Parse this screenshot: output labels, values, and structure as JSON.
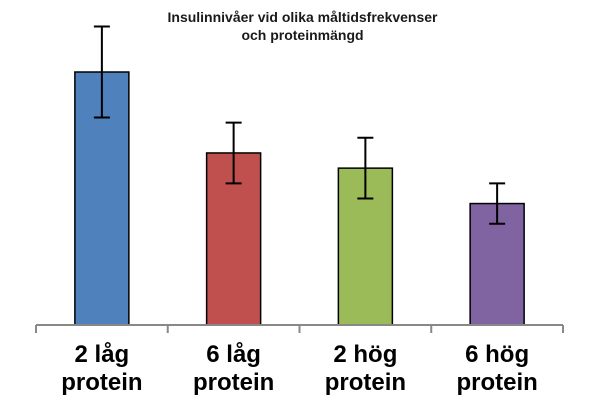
{
  "chart_data": {
    "type": "bar",
    "title": "Insulinnivåer vid olika måltidsfrekvenser och proteinmängd",
    "title_lines": [
      "Insulinnivåer vid olika måltidsfrekvenser",
      "och proteinmängd"
    ],
    "categories": [
      [
        "2 låg",
        "protein"
      ],
      [
        "6 låg",
        "protein"
      ],
      [
        "2 hög",
        "protein"
      ],
      [
        "6 hög",
        "protein"
      ]
    ],
    "values": [
      100,
      68,
      62,
      48
    ],
    "error": [
      18,
      12,
      12,
      8
    ],
    "colors": [
      "#4f81bd",
      "#c0504d",
      "#9bbb59",
      "#8064a2"
    ],
    "ylim": [
      0,
      100
    ],
    "xlabel": "",
    "ylabel": "",
    "grid": false
  }
}
